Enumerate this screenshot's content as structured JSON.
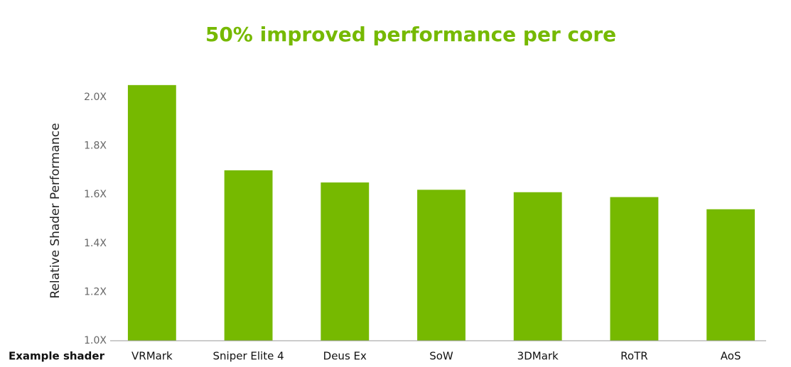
{
  "chart_data": {
    "type": "bar",
    "title": "50% improved performance per core",
    "y_label": "Relative Shader Performance",
    "x_label": "Example shader",
    "categories": [
      "VRMark",
      "Sniper Elite 4",
      "Deus Ex",
      "SoW",
      "3DMark",
      "RoTR",
      "AoS"
    ],
    "values": [
      2.05,
      1.7,
      1.65,
      1.62,
      1.61,
      1.59,
      1.54
    ],
    "color": "#76b900",
    "ylim": [
      1.0,
      2.1
    ],
    "yticks": [
      {
        "value": 1.0,
        "label": "1.0X"
      },
      {
        "value": 1.2,
        "label": "1.2X"
      },
      {
        "value": 1.4,
        "label": "1.4X"
      },
      {
        "value": 1.6,
        "label": "1.6X"
      },
      {
        "value": 1.8,
        "label": "1.8X"
      },
      {
        "value": 2.0,
        "label": "2.0X"
      }
    ],
    "grid": false
  }
}
